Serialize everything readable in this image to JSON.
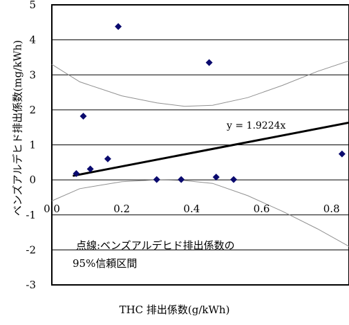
{
  "chart_data": {
    "type": "scatter",
    "xlabel": "THC 排出係数(g/kWh)",
    "ylabel": "ベンズアルデヒド排出係数(mg/kWh)",
    "xlim": [
      0.0,
      0.85
    ],
    "ylim": [
      -3,
      5
    ],
    "x_ticks": [
      "0.0",
      "0.2",
      "0.4",
      "0.6",
      "0.8"
    ],
    "x_tick_values": [
      0.0,
      0.2,
      0.4,
      0.6,
      0.8
    ],
    "y_ticks": [
      "5",
      "4",
      "3",
      "2",
      "1",
      "0",
      "-1",
      "-2",
      "-3"
    ],
    "y_tick_values": [
      5,
      4,
      3,
      2,
      1,
      0,
      -1,
      -2,
      -3
    ],
    "grid": "horizontal",
    "points": [
      {
        "x": 0.07,
        "y": 0.18
      },
      {
        "x": 0.09,
        "y": 1.82
      },
      {
        "x": 0.11,
        "y": 0.31
      },
      {
        "x": 0.16,
        "y": 0.6
      },
      {
        "x": 0.19,
        "y": 4.38
      },
      {
        "x": 0.3,
        "y": 0.01
      },
      {
        "x": 0.37,
        "y": 0.01
      },
      {
        "x": 0.45,
        "y": 3.35
      },
      {
        "x": 0.47,
        "y": 0.08
      },
      {
        "x": 0.52,
        "y": 0.01
      },
      {
        "x": 0.83,
        "y": 0.74
      }
    ],
    "trendline": {
      "slope": 1.9224,
      "x_range": [
        0.06,
        0.85
      ],
      "label": "y = 1.9224x"
    },
    "confidence_band": {
      "upper": [
        [
          -0.06,
          3.3
        ],
        [
          0.08,
          2.8
        ],
        [
          0.2,
          2.4
        ],
        [
          0.3,
          2.2
        ],
        [
          0.38,
          2.1
        ],
        [
          0.46,
          2.13
        ],
        [
          0.56,
          2.35
        ],
        [
          0.66,
          2.7
        ],
        [
          0.76,
          3.1
        ],
        [
          0.85,
          3.4
        ]
      ],
      "lower": [
        [
          -0.06,
          -0.6
        ],
        [
          0.08,
          -0.25
        ],
        [
          0.2,
          -0.05
        ],
        [
          0.3,
          0.0
        ],
        [
          0.38,
          -0.02
        ],
        [
          0.46,
          -0.1
        ],
        [
          0.56,
          -0.45
        ],
        [
          0.66,
          -0.9
        ],
        [
          0.76,
          -1.4
        ],
        [
          0.85,
          -1.9
        ]
      ]
    },
    "annotation": {
      "line1": "点線:ベンズアルデヒド排出係数の",
      "line2": "95%信頼区間"
    }
  },
  "colors": {
    "marker": "#0a0a6e",
    "trendline": "#000000",
    "band": "#909090",
    "grid": "#000000"
  }
}
